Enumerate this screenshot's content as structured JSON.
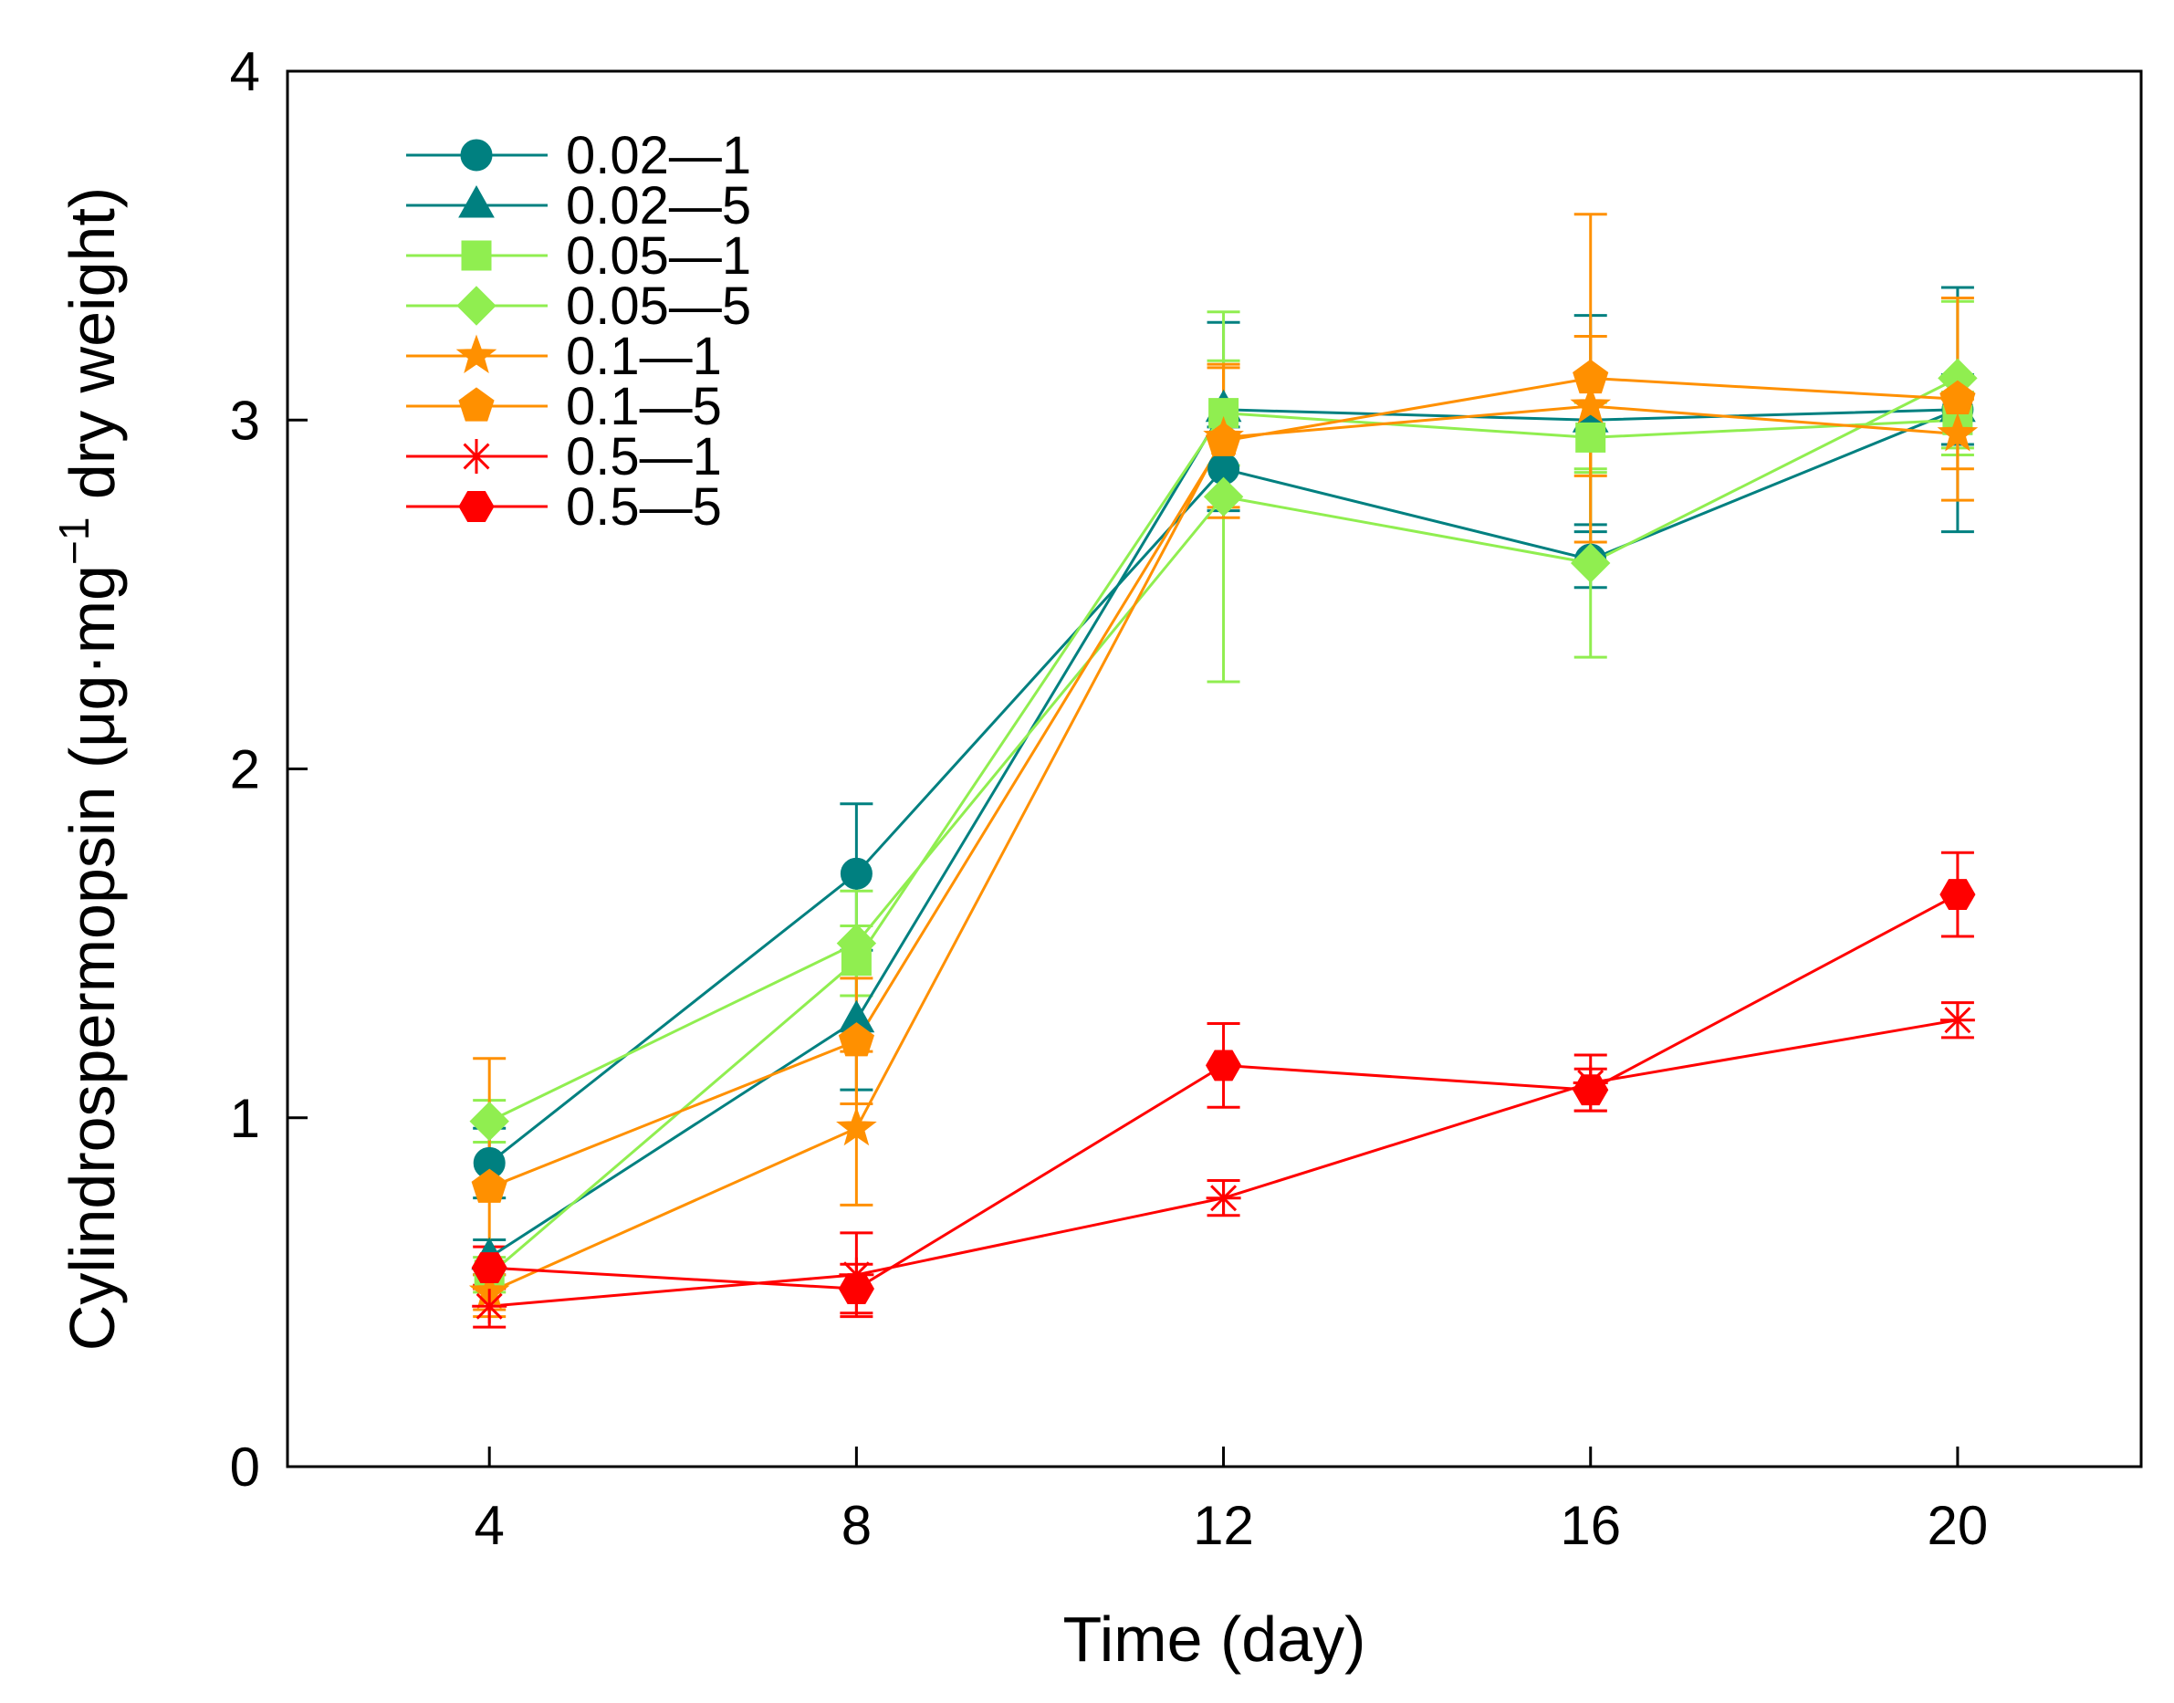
{
  "chart_data": {
    "type": "line",
    "title": "",
    "xlabel": "Time (day)",
    "ylabel_main": "Cylindrospermopsin (μg·mg",
    "ylabel_sup": "−1",
    "ylabel_tail": " dry weight)",
    "xlim": [
      1.8,
      22
    ],
    "ylim": [
      0,
      4
    ],
    "xticks": [
      4,
      8,
      12,
      16,
      20
    ],
    "yticks": [
      0,
      1,
      2,
      3,
      4
    ],
    "x": [
      4,
      8,
      12,
      16,
      20
    ],
    "grid": false,
    "legend_position": "top-left",
    "series": [
      {
        "name": "0.02—1",
        "color": "#008080",
        "marker": "circle",
        "values": [
          0.87,
          1.7,
          2.86,
          2.6,
          3.03
        ],
        "errors": [
          0.1,
          0.2,
          0.12,
          0.08,
          0.1
        ]
      },
      {
        "name": "0.02—5",
        "color": "#008080",
        "marker": "triangle",
        "values": [
          0.6,
          1.28,
          3.03,
          3.0,
          3.03
        ],
        "errors": [
          0.05,
          0.2,
          0.25,
          0.3,
          0.35
        ]
      },
      {
        "name": "0.05—1",
        "color": "#90EE50",
        "marker": "square",
        "values": [
          0.55,
          1.45,
          3.02,
          2.95,
          3.0
        ],
        "errors": [
          0.05,
          0.1,
          0.15,
          0.1,
          0.08
        ]
      },
      {
        "name": "0.05—5",
        "color": "#90EE50",
        "marker": "diamond",
        "values": [
          0.99,
          1.5,
          2.78,
          2.59,
          3.12
        ],
        "errors": [
          0.06,
          0.15,
          0.53,
          0.27,
          0.22
        ]
      },
      {
        "name": "0.1—1",
        "color": "#FF9000",
        "marker": "star",
        "values": [
          0.5,
          0.97,
          2.95,
          3.04,
          2.96
        ],
        "errors": [
          0.05,
          0.22,
          0.2,
          0.2,
          0.1
        ]
      },
      {
        "name": "0.1—5",
        "color": "#FF9000",
        "marker": "pentagon",
        "values": [
          0.8,
          1.22,
          2.94,
          3.12,
          3.06
        ],
        "errors": [
          0.37,
          0.18,
          0.22,
          0.47,
          0.29
        ]
      },
      {
        "name": "0.5—1",
        "color": "#FF0000",
        "marker": "asterisk",
        "values": [
          0.46,
          0.55,
          0.77,
          1.1,
          1.28
        ],
        "errors": [
          0.06,
          0.12,
          0.05,
          0.08,
          0.05
        ]
      },
      {
        "name": "0.5—5",
        "color": "#FF0000",
        "marker": "hexagon",
        "values": [
          0.57,
          0.51,
          1.15,
          1.08,
          1.64
        ],
        "errors": [
          0.06,
          0.07,
          0.12,
          0.06,
          0.12
        ]
      }
    ]
  }
}
